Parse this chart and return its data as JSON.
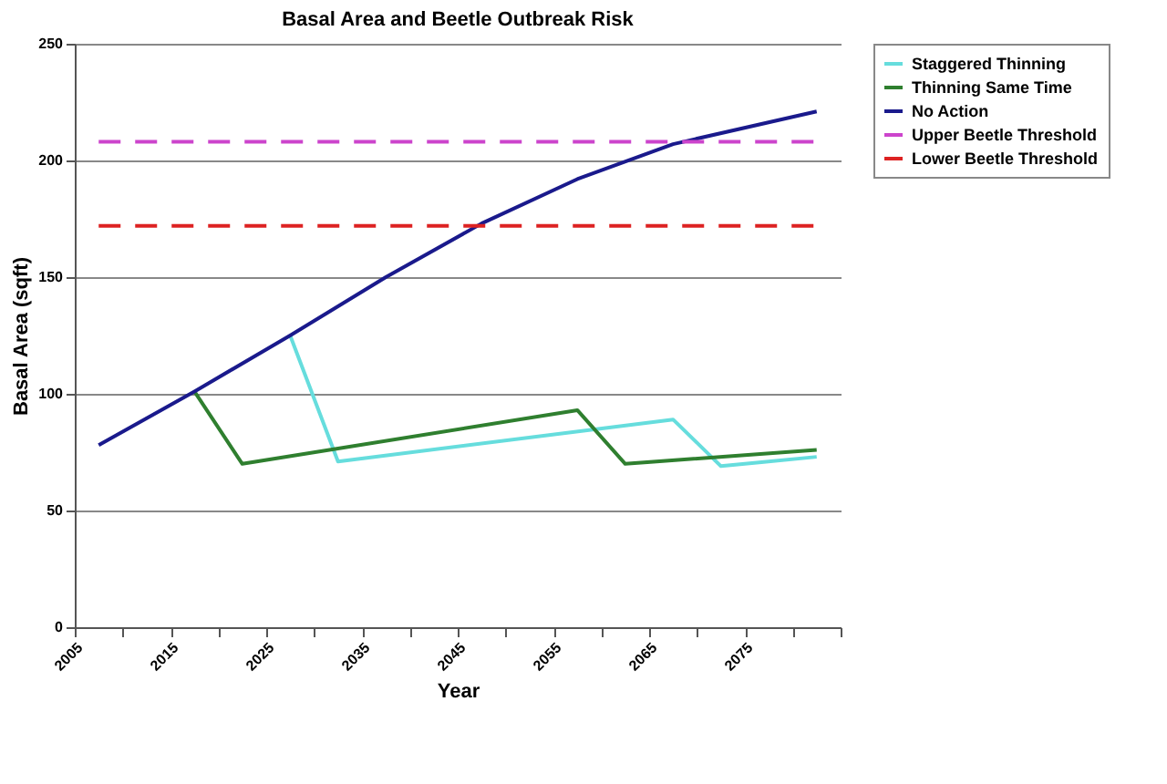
{
  "chart_data": {
    "type": "line",
    "title": "Basal Area and Beetle Outbreak Risk",
    "xlabel": "Year",
    "ylabel": "Basal Area (sqft)",
    "xlim": [
      2005,
      2085
    ],
    "xticks": [
      2005,
      {
        "value": 2010,
        "label": null
      },
      2015,
      {
        "value": 2020,
        "label": null
      },
      2025,
      {
        "value": 2030,
        "label": null
      },
      2035,
      {
        "value": 2040,
        "label": null
      },
      2045,
      {
        "value": 2050,
        "label": null
      },
      2055,
      {
        "value": 2060,
        "label": null
      },
      2065,
      {
        "value": 2070,
        "label": null
      },
      2075,
      {
        "value": 2080,
        "label": null
      },
      {
        "value": 2085,
        "label": null
      }
    ],
    "ylim": [
      0,
      250
    ],
    "yticks": [
      0,
      50,
      100,
      150,
      200,
      250
    ],
    "grid": "y",
    "legend": "right",
    "line_style": "solid",
    "marker": "none",
    "series": [
      {
        "name": "Staggered Thinning",
        "color": "#66dddd",
        "x": [
          2027.5,
          2032.5,
          2067.5,
          2072.5,
          2082.5
        ],
        "values": [
          125,
          71,
          89,
          69,
          73
        ]
      },
      {
        "name": "Thinning Same Time",
        "color": "#2f7f2f",
        "x": [
          2017.5,
          2022.5,
          2057.5,
          2062.5,
          2082.5
        ],
        "values": [
          101,
          70,
          93,
          70,
          76
        ]
      },
      {
        "name": "No Action",
        "color": "#1a1a8c",
        "x": [
          2007.5,
          2017.5,
          2027.5,
          2037.5,
          2047.5,
          2057.5,
          2067.5,
          2082.5
        ],
        "values": [
          78,
          101,
          125,
          150,
          173,
          192,
          207,
          221
        ]
      },
      {
        "name": "Upper Beetle Threshold",
        "color": "#cc44cc",
        "line_style": "dashed",
        "x": [
          2007.5,
          2082.5
        ],
        "values": [
          208,
          208
        ]
      },
      {
        "name": "Lower Beetle Threshold",
        "color": "#dd2222",
        "line_style": "dashed",
        "x": [
          2007.5,
          2082.5
        ],
        "values": [
          172,
          172
        ]
      }
    ]
  }
}
